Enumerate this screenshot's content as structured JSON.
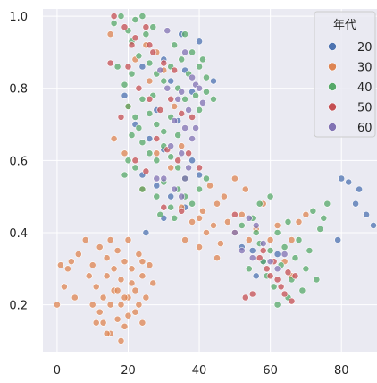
{
  "chart_data": {
    "type": "scatter",
    "title": "",
    "xlabel": "",
    "ylabel": "",
    "xlim": [
      -4,
      90
    ],
    "ylim": [
      0.07,
      1.02
    ],
    "x_ticks": [
      0,
      20,
      40,
      60,
      80
    ],
    "y_ticks": [
      0.2,
      0.4,
      0.6,
      0.8,
      1.0
    ],
    "x_tick_labels": [
      "0",
      "20",
      "40",
      "60",
      "80"
    ],
    "y_tick_labels": [
      "0.2",
      "0.4",
      "0.6",
      "0.8",
      "1.0"
    ],
    "grid": true,
    "legend": {
      "title": "年代",
      "placement": "top-right"
    },
    "series": [
      {
        "name": "20",
        "color": "#4c72b0",
        "points": [
          [
            80,
            0.55
          ],
          [
            82,
            0.54
          ],
          [
            85,
            0.52
          ],
          [
            84,
            0.48
          ],
          [
            87,
            0.45
          ],
          [
            89,
            0.42
          ],
          [
            79,
            0.38
          ],
          [
            35,
            0.95
          ],
          [
            40,
            0.93
          ],
          [
            30,
            0.88
          ],
          [
            36,
            0.85
          ],
          [
            32,
            0.82
          ],
          [
            38,
            0.79
          ],
          [
            28,
            0.74
          ],
          [
            34,
            0.71
          ],
          [
            22,
            0.7
          ],
          [
            26,
            0.66
          ],
          [
            30,
            0.63
          ],
          [
            38,
            0.6
          ],
          [
            24,
            0.56
          ],
          [
            28,
            0.53
          ],
          [
            32,
            0.5
          ],
          [
            36,
            0.47
          ],
          [
            40,
            0.56
          ],
          [
            19,
            0.78
          ],
          [
            24,
            0.86
          ],
          [
            44,
            0.82
          ],
          [
            55,
            0.35
          ],
          [
            58,
            0.32
          ],
          [
            52,
            0.36
          ],
          [
            62,
            0.34
          ],
          [
            56,
            0.28
          ],
          [
            25,
            0.4
          ],
          [
            30,
            0.44
          ]
        ]
      },
      {
        "name": "30",
        "color": "#dd8452",
        "points": [
          [
            0,
            0.2
          ],
          [
            1,
            0.31
          ],
          [
            3,
            0.3
          ],
          [
            2,
            0.25
          ],
          [
            4,
            0.32
          ],
          [
            6,
            0.34
          ],
          [
            5,
            0.22
          ],
          [
            8,
            0.38
          ],
          [
            10,
            0.2
          ],
          [
            11,
            0.25
          ],
          [
            12,
            0.18
          ],
          [
            13,
            0.15
          ],
          [
            13,
            0.22
          ],
          [
            14,
            0.28
          ],
          [
            14,
            0.33
          ],
          [
            15,
            0.12
          ],
          [
            15,
            0.2
          ],
          [
            16,
            0.24
          ],
          [
            16,
            0.3
          ],
          [
            17,
            0.35
          ],
          [
            17,
            0.16
          ],
          [
            18,
            0.27
          ],
          [
            18,
            0.2
          ],
          [
            19,
            0.32
          ],
          [
            19,
            0.14
          ],
          [
            20,
            0.22
          ],
          [
            20,
            0.38
          ],
          [
            21,
            0.26
          ],
          [
            21,
            0.3
          ],
          [
            22,
            0.18
          ],
          [
            22,
            0.24
          ],
          [
            23,
            0.34
          ],
          [
            23,
            0.2
          ],
          [
            24,
            0.28
          ],
          [
            24,
            0.15
          ],
          [
            25,
            0.22
          ],
          [
            26,
            0.31
          ],
          [
            12,
            0.36
          ],
          [
            14,
            0.12
          ],
          [
            18,
            0.1
          ],
          [
            20,
            0.17
          ],
          [
            9,
            0.28
          ],
          [
            15,
            0.38
          ],
          [
            27,
            0.26
          ],
          [
            24,
            0.32
          ],
          [
            17,
            0.24
          ],
          [
            10,
            0.31
          ],
          [
            11,
            0.15
          ],
          [
            19,
            0.22
          ],
          [
            35,
            0.47
          ],
          [
            38,
            0.43
          ],
          [
            40,
            0.44
          ],
          [
            42,
            0.4
          ],
          [
            44,
            0.42
          ],
          [
            45,
            0.48
          ],
          [
            46,
            0.37
          ],
          [
            48,
            0.43
          ],
          [
            50,
            0.4
          ],
          [
            52,
            0.45
          ],
          [
            47,
            0.5
          ],
          [
            54,
            0.38
          ],
          [
            56,
            0.41
          ],
          [
            43,
            0.53
          ],
          [
            36,
            0.38
          ],
          [
            40,
            0.36
          ],
          [
            58,
            0.48
          ],
          [
            60,
            0.38
          ],
          [
            64,
            0.32
          ],
          [
            66,
            0.28
          ],
          [
            62,
            0.42
          ],
          [
            68,
            0.43
          ],
          [
            70,
            0.45
          ],
          [
            66,
            0.38
          ],
          [
            45,
            0.33
          ],
          [
            50,
            0.55
          ],
          [
            53,
            0.52
          ],
          [
            41,
            0.46
          ],
          [
            25,
            0.92
          ],
          [
            28,
            0.9
          ],
          [
            30,
            0.85
          ],
          [
            22,
            0.88
          ],
          [
            26,
            0.82
          ],
          [
            33,
            0.75
          ],
          [
            20,
            0.75
          ],
          [
            16,
            0.66
          ],
          [
            19,
            0.62
          ],
          [
            24,
            0.52
          ],
          [
            28,
            0.62
          ],
          [
            32,
            0.58
          ],
          [
            35,
            0.64
          ],
          [
            15,
            0.95
          ]
        ]
      },
      {
        "name": "40",
        "color": "#55a868",
        "points": [
          [
            16,
            0.98
          ],
          [
            18,
            1.0
          ],
          [
            20,
            0.96
          ],
          [
            22,
            0.99
          ],
          [
            24,
            1.0
          ],
          [
            21,
            0.93
          ],
          [
            25,
            0.95
          ],
          [
            27,
            0.97
          ],
          [
            23,
            0.89
          ],
          [
            26,
            0.87
          ],
          [
            28,
            0.84
          ],
          [
            30,
            0.82
          ],
          [
            32,
            0.86
          ],
          [
            34,
            0.8
          ],
          [
            35,
            0.88
          ],
          [
            37,
            0.84
          ],
          [
            38,
            0.9
          ],
          [
            40,
            0.86
          ],
          [
            42,
            0.83
          ],
          [
            36,
            0.77
          ],
          [
            40,
            0.74
          ],
          [
            42,
            0.79
          ],
          [
            44,
            0.77
          ],
          [
            19,
            0.81
          ],
          [
            20,
            0.75
          ],
          [
            22,
            0.72
          ],
          [
            24,
            0.77
          ],
          [
            26,
            0.73
          ],
          [
            28,
            0.7
          ],
          [
            30,
            0.68
          ],
          [
            32,
            0.72
          ],
          [
            34,
            0.67
          ],
          [
            24,
            0.65
          ],
          [
            26,
            0.62
          ],
          [
            28,
            0.6
          ],
          [
            30,
            0.64
          ],
          [
            32,
            0.61
          ],
          [
            34,
            0.58
          ],
          [
            36,
            0.55
          ],
          [
            22,
            0.58
          ],
          [
            20,
            0.6
          ],
          [
            19,
            0.56
          ],
          [
            24,
            0.52
          ],
          [
            28,
            0.5
          ],
          [
            30,
            0.54
          ],
          [
            32,
            0.47
          ],
          [
            34,
            0.52
          ],
          [
            36,
            0.5
          ],
          [
            38,
            0.48
          ],
          [
            40,
            0.52
          ],
          [
            42,
            0.55
          ],
          [
            33,
            0.44
          ],
          [
            29,
            0.45
          ],
          [
            21,
            0.67
          ],
          [
            23,
            0.69
          ],
          [
            27,
            0.78
          ],
          [
            17,
            0.86
          ],
          [
            21,
            0.84
          ],
          [
            33,
            0.92
          ],
          [
            36,
            0.95
          ],
          [
            39,
            0.78
          ],
          [
            41,
            0.88
          ],
          [
            52,
            0.42
          ],
          [
            55,
            0.44
          ],
          [
            57,
            0.37
          ],
          [
            58,
            0.32
          ],
          [
            59,
            0.28
          ],
          [
            60,
            0.35
          ],
          [
            61,
            0.25
          ],
          [
            62,
            0.4
          ],
          [
            63,
            0.31
          ],
          [
            64,
            0.36
          ],
          [
            65,
            0.43
          ],
          [
            66,
            0.27
          ],
          [
            67,
            0.33
          ],
          [
            68,
            0.38
          ],
          [
            69,
            0.24
          ],
          [
            70,
            0.3
          ],
          [
            71,
            0.35
          ],
          [
            72,
            0.46
          ],
          [
            73,
            0.27
          ],
          [
            74,
            0.41
          ],
          [
            75,
            0.44
          ],
          [
            76,
            0.48
          ],
          [
            57,
            0.48
          ],
          [
            60,
            0.5
          ],
          [
            62,
            0.2
          ],
          [
            65,
            0.22
          ],
          [
            54,
            0.3
          ],
          [
            56,
            0.4
          ]
        ]
      },
      {
        "name": "50",
        "color": "#c44e52",
        "points": [
          [
            16,
            1.0
          ],
          [
            19,
            0.97
          ],
          [
            22,
            0.94
          ],
          [
            25,
            0.97
          ],
          [
            27,
            0.9
          ],
          [
            30,
            0.87
          ],
          [
            33,
            0.85
          ],
          [
            20,
            0.86
          ],
          [
            23,
            0.8
          ],
          [
            26,
            0.77
          ],
          [
            29,
            0.74
          ],
          [
            32,
            0.77
          ],
          [
            35,
            0.73
          ],
          [
            38,
            0.72
          ],
          [
            28,
            0.66
          ],
          [
            31,
            0.63
          ],
          [
            34,
            0.6
          ],
          [
            37,
            0.62
          ],
          [
            40,
            0.58
          ],
          [
            25,
            0.57
          ],
          [
            22,
            0.6
          ],
          [
            15,
            0.87
          ],
          [
            18,
            0.72
          ],
          [
            26,
            0.92
          ],
          [
            21,
            0.92
          ],
          [
            30,
            0.47
          ],
          [
            35,
            0.46
          ],
          [
            60,
            0.28
          ],
          [
            62,
            0.27
          ],
          [
            63,
            0.25
          ],
          [
            65,
            0.29
          ],
          [
            66,
            0.21
          ],
          [
            61,
            0.32
          ],
          [
            64,
            0.23
          ],
          [
            59,
            0.3
          ],
          [
            57,
            0.33
          ],
          [
            67,
            0.28
          ],
          [
            53,
            0.22
          ],
          [
            55,
            0.23
          ],
          [
            50,
            0.45
          ],
          [
            58,
            0.35
          ]
        ]
      },
      {
        "name": "60",
        "color": "#8172b3",
        "points": [
          [
            31,
            0.96
          ],
          [
            36,
            0.9
          ],
          [
            38,
            0.83
          ],
          [
            35,
            0.79
          ],
          [
            37,
            0.74
          ],
          [
            34,
            0.77
          ],
          [
            39,
            0.81
          ],
          [
            41,
            0.76
          ],
          [
            33,
            0.71
          ],
          [
            36,
            0.69
          ],
          [
            38,
            0.66
          ],
          [
            32,
            0.64
          ],
          [
            35,
            0.62
          ],
          [
            37,
            0.58
          ],
          [
            30,
            0.55
          ],
          [
            33,
            0.52
          ],
          [
            35,
            0.5
          ],
          [
            29,
            0.85
          ],
          [
            40,
            0.8
          ],
          [
            39,
            0.69
          ],
          [
            31,
            0.8
          ],
          [
            28,
            0.55
          ],
          [
            36,
            0.55
          ],
          [
            50,
            0.4
          ],
          [
            52,
            0.35
          ],
          [
            55,
            0.33
          ],
          [
            54,
            0.44
          ],
          [
            58,
            0.37
          ],
          [
            60,
            0.32
          ],
          [
            62,
            0.3
          ],
          [
            64,
            0.34
          ],
          [
            56,
            0.42
          ]
        ]
      }
    ]
  }
}
